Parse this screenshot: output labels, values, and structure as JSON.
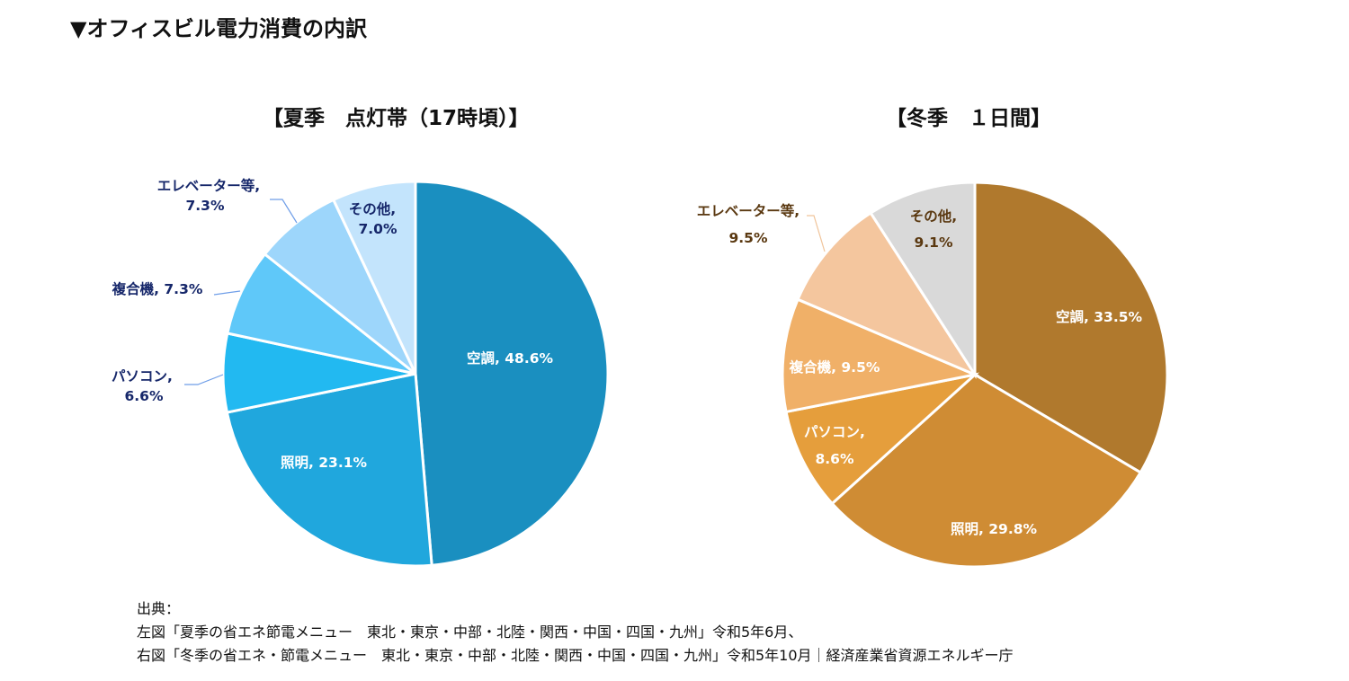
{
  "title": "▼オフィスビル電力消費の内訳",
  "source": {
    "heading": "出典：",
    "line1": "左図「夏季の省エネ節電メニュー　東北・東京・中部・北陸・関西・中国・四国・九州」令和5年6月、",
    "line2": "右図「冬季の省エネ・節電メニュー　東北・東京・中部・北陸・関西・中国・四国・九州」令和5年10月｜経済産業省資源エネルギー庁"
  },
  "chart_data": [
    {
      "type": "pie",
      "title": "【夏季　点灯帯（17時頃）】",
      "start": "top",
      "direction": "clockwise",
      "slices": [
        {
          "label": "空調",
          "value": 48.6,
          "text": "48.6%",
          "color": "#1a8fc0"
        },
        {
          "label": "照明",
          "value": 23.1,
          "text": "23.1%",
          "color": "#20a7dd"
        },
        {
          "label": "パソコン",
          "value": 6.6,
          "text": "6.6%",
          "color": "#22b9f1"
        },
        {
          "label": "複合機",
          "value": 7.3,
          "text": "7.3%",
          "color": "#5fc8f9"
        },
        {
          "label": "エレベーター等",
          "value": 7.3,
          "text": "7.3%",
          "color": "#9dd6fb"
        },
        {
          "label": "その他",
          "value": 7.0,
          "text": "7.0%",
          "color": "#c3e4fc"
        }
      ],
      "label_color": "#16276a"
    },
    {
      "type": "pie",
      "title": "【冬季　１日間】",
      "start": "top",
      "direction": "clockwise",
      "slices": [
        {
          "label": "空調",
          "value": 33.5,
          "text": "33.5%",
          "color": "#b0792d"
        },
        {
          "label": "照明",
          "value": 29.8,
          "text": "29.8%",
          "color": "#cf8c34"
        },
        {
          "label": "パソコン",
          "value": 8.6,
          "text": "8.6%",
          "color": "#e59e3c"
        },
        {
          "label": "複合機",
          "value": 9.5,
          "text": "9.5%",
          "color": "#f0b068"
        },
        {
          "label": "エレベーター等",
          "value": 9.5,
          "text": "9.5%",
          "color": "#f4c69e"
        },
        {
          "label": "その他",
          "value": 9.1,
          "text": "9.1%",
          "color": "#d9d9d9"
        }
      ],
      "label_color": "#5a3810"
    }
  ]
}
